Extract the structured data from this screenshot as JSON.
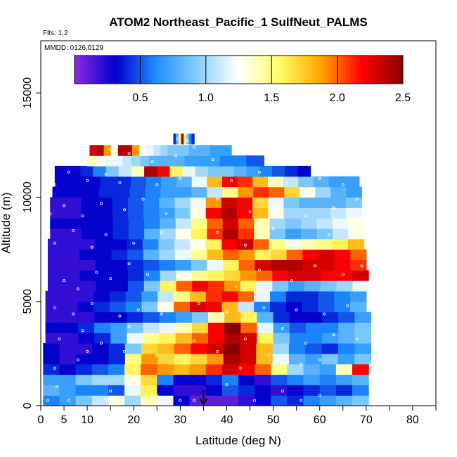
{
  "chart_data": {
    "type": "heatmap",
    "title": "ATOM2 Northeast_Pacific_1 SulfNeut_PALMS",
    "annotations": [
      "Flts: 1,2",
      "MMDD: 0126,0129"
    ],
    "xlabel": "Latitude (deg N)",
    "ylabel": "Altitude (m)",
    "xlim": [
      0,
      85
    ],
    "ylim": [
      0,
      17500
    ],
    "x_ticks": [
      0,
      5,
      10,
      15,
      20,
      25,
      30,
      35,
      40,
      45,
      50,
      55,
      60,
      65,
      70,
      75,
      80,
      85
    ],
    "x_tick_labels": [
      "0",
      "5",
      "10",
      "",
      "20",
      "",
      "30",
      "",
      "40",
      "",
      "50",
      "",
      "60",
      "",
      "70",
      "",
      "80",
      ""
    ],
    "y_ticks": [
      0,
      5000,
      10000,
      15000
    ],
    "y_tick_labels": [
      "0",
      "5000",
      "10000",
      "15000"
    ],
    "colorbar": {
      "min": 0,
      "max": 2.5,
      "ticks": [
        0.5,
        1.0,
        1.5,
        2.0,
        2.5
      ],
      "tick_labels": [
        "0.5",
        "1.0",
        "1.5",
        "2.0",
        "2.5"
      ],
      "colors": [
        "#8a2be2",
        "#0000cd",
        "#1e90ff",
        "#87cefa",
        "#ffffff",
        "#ffff66",
        "#ffa500",
        "#ff0000",
        "#8b0000"
      ]
    },
    "marker": {
      "x": 35,
      "y": 0,
      "shape": "down-arrow"
    },
    "rows": [
      {
        "y": 250,
        "x_start": 0.5,
        "x_end": 70.5,
        "v": [
          0.6,
          0.7,
          0.9,
          1.1,
          1.3,
          1.0,
          1.4,
          1.2,
          0.3,
          0.1,
          0.1,
          0.1,
          0.2,
          0.3,
          0.5,
          0.4,
          0.6,
          0.7,
          0.8,
          0.9
        ]
      },
      {
        "y": 750,
        "x_start": 0.5,
        "x_end": 70.5,
        "v": [
          0.8,
          0.7,
          0.6,
          0.6,
          0.5,
          1.2,
          1.6,
          0.3,
          0.2,
          0.2,
          0.3,
          0.5,
          0.4,
          0.3,
          0.2,
          0.3,
          0.4,
          0.5,
          0.4,
          0.6
        ]
      },
      {
        "y": 1250,
        "x_start": 0.5,
        "x_end": 70.5,
        "v": [
          0.7,
          0.7,
          0.9,
          1.0,
          1.0,
          1.3,
          1.7,
          0.6,
          0.3,
          0.3,
          0.4,
          0.6,
          0.3,
          0.2,
          0.5,
          0.6,
          0.7,
          0.6,
          0.7,
          0.8
        ]
      },
      {
        "y": 1750,
        "x_start": 0.5,
        "x_end": 70.5,
        "v": [
          0.4,
          0.3,
          0.4,
          0.5,
          0.6,
          1.6,
          2.0,
          1.9,
          1.8,
          1.9,
          2.1,
          2.3,
          2.2,
          2.0,
          1.5,
          1.0,
          0.8,
          0.7,
          1.4,
          2.2
        ]
      },
      {
        "y": 2250,
        "x_start": 0.5,
        "x_end": 71,
        "v": [
          0.3,
          0.2,
          0.3,
          0.3,
          0.4,
          1.5,
          1.9,
          1.7,
          1.6,
          1.7,
          1.9,
          2.4,
          2.3,
          1.8,
          1.2,
          0.8,
          0.7,
          0.9,
          0.7,
          0.9
        ]
      },
      {
        "y": 2750,
        "x_start": 0.5,
        "x_end": 71,
        "v": [
          0.3,
          0.2,
          0.2,
          0.3,
          0.4,
          0.9,
          1.7,
          1.8,
          2.0,
          2.2,
          2.3,
          2.5,
          2.3,
          1.8,
          1.0,
          0.6,
          0.5,
          0.4,
          0.6,
          0.7
        ]
      },
      {
        "y": 3250,
        "x_start": 1,
        "x_end": 71,
        "v": [
          0.2,
          0.2,
          0.3,
          0.4,
          0.7,
          1.2,
          1.5,
          1.6,
          1.8,
          2.0,
          2.2,
          2.4,
          2.3,
          1.6,
          0.9,
          0.6,
          0.6,
          0.7,
          0.8,
          0.9
        ]
      },
      {
        "y": 3750,
        "x_start": 1,
        "x_end": 71,
        "v": [
          0.3,
          0.3,
          0.4,
          0.6,
          0.7,
          0.9,
          1.1,
          1.2,
          1.4,
          1.7,
          2.2,
          2.5,
          2.0,
          1.2,
          0.7,
          0.5,
          0.6,
          0.6,
          0.8,
          0.9
        ]
      },
      {
        "y": 4250,
        "x_start": 1,
        "x_end": 71,
        "v": [
          0.2,
          0.2,
          0.2,
          0.3,
          0.3,
          0.4,
          0.5,
          0.6,
          0.7,
          0.9,
          1.4,
          1.8,
          1.6,
          0.8,
          0.4,
          0.3,
          0.3,
          0.4,
          0.5,
          0.7
        ]
      },
      {
        "y": 4750,
        "x_start": 1,
        "x_end": 70,
        "v": [
          0.2,
          0.2,
          0.3,
          0.4,
          0.5,
          0.6,
          0.9,
          1.3,
          2.0,
          2.3,
          2.2,
          1.8,
          1.1,
          0.6,
          0.4,
          0.3,
          0.4,
          0.5,
          0.6,
          0.8
        ]
      },
      {
        "y": 5250,
        "x_start": 1,
        "x_end": 70,
        "v": [
          0.2,
          0.2,
          0.2,
          0.3,
          0.4,
          0.5,
          0.7,
          1.1,
          1.5,
          1.8,
          2.1,
          2.2,
          2.0,
          1.2,
          0.6,
          0.4,
          0.4,
          0.5,
          0.6,
          0.7
        ]
      },
      {
        "y": 5750,
        "x_start": 1.5,
        "x_end": 70.5,
        "v": [
          0.2,
          0.2,
          0.2,
          0.3,
          0.3,
          0.5,
          0.9,
          1.6,
          2.0,
          2.2,
          2.1,
          1.9,
          1.6,
          1.2,
          0.9,
          0.7,
          0.8,
          0.9,
          1.0,
          1.2
        ]
      },
      {
        "y": 6250,
        "x_start": 1.5,
        "x_end": 70.5,
        "v": [
          0.2,
          0.2,
          0.3,
          0.3,
          0.3,
          0.4,
          0.6,
          1.0,
          1.3,
          1.5,
          1.6,
          1.7,
          1.9,
          2.0,
          2.2,
          2.3,
          2.3,
          2.2,
          2.2,
          2.3
        ]
      },
      {
        "y": 6750,
        "x_start": 1.5,
        "x_end": 70,
        "v": [
          0.2,
          0.2,
          0.2,
          0.3,
          0.3,
          0.4,
          0.5,
          0.6,
          0.7,
          0.9,
          1.2,
          1.6,
          2.0,
          2.3,
          2.4,
          2.4,
          2.3,
          2.3,
          2.2,
          2.1
        ]
      },
      {
        "y": 7250,
        "x_start": 1.5,
        "x_end": 70,
        "v": [
          0.2,
          0.2,
          0.3,
          0.3,
          0.4,
          0.5,
          0.8,
          1.0,
          1.2,
          1.5,
          1.8,
          2.0,
          1.9,
          1.6,
          1.7,
          2.0,
          2.2,
          2.3,
          2.2,
          2.0
        ]
      },
      {
        "y": 7750,
        "x_start": 1.5,
        "x_end": 69.5,
        "v": [
          0.2,
          0.2,
          0.2,
          0.3,
          0.3,
          0.4,
          0.6,
          0.9,
          1.1,
          1.3,
          1.6,
          2.2,
          2.3,
          2.0,
          1.5,
          1.3,
          1.4,
          1.5,
          1.6,
          1.8
        ]
      },
      {
        "y": 8250,
        "x_start": 2,
        "x_end": 69.5,
        "v": [
          0.2,
          0.2,
          0.3,
          0.3,
          0.4,
          0.5,
          0.8,
          1.0,
          1.3,
          1.6,
          2.1,
          2.4,
          2.1,
          1.4,
          0.9,
          0.7,
          0.8,
          0.9,
          1.1,
          1.3
        ]
      },
      {
        "y": 8750,
        "x_start": 2,
        "x_end": 69.5,
        "v": [
          0.3,
          0.3,
          0.3,
          0.3,
          0.4,
          0.5,
          0.6,
          0.8,
          1.1,
          1.5,
          2.0,
          2.3,
          2.0,
          1.4,
          1.0,
          0.9,
          1.0,
          1.1,
          1.2,
          1.3
        ]
      },
      {
        "y": 9250,
        "x_start": 2,
        "x_end": 69,
        "v": [
          0.2,
          0.2,
          0.3,
          0.3,
          0.4,
          0.5,
          0.6,
          0.7,
          0.9,
          1.3,
          2.2,
          2.4,
          2.2,
          1.8,
          1.3,
          1.0,
          1.0,
          1.0,
          1.1,
          1.2
        ]
      },
      {
        "y": 9750,
        "x_start": 2,
        "x_end": 69,
        "v": [
          0.2,
          0.2,
          0.3,
          0.3,
          0.4,
          0.5,
          0.6,
          0.8,
          1.0,
          1.2,
          1.9,
          2.3,
          2.2,
          1.7,
          1.2,
          0.9,
          0.8,
          0.8,
          0.8,
          0.9
        ]
      },
      {
        "y": 10250,
        "x_start": 2.5,
        "x_end": 69,
        "v": [
          0.3,
          0.3,
          0.3,
          0.4,
          0.4,
          0.5,
          0.6,
          0.7,
          0.7,
          0.8,
          1.1,
          1.5,
          1.9,
          2.1,
          2.0,
          1.7,
          1.3,
          1.0,
          0.8,
          0.7
        ]
      },
      {
        "y": 10750,
        "x_start": 3,
        "x_end": 68.5,
        "v": [
          0.3,
          0.3,
          0.3,
          0.4,
          0.4,
          0.5,
          0.6,
          0.7,
          0.8,
          1.2,
          1.8,
          2.2,
          2.1,
          1.8,
          1.4,
          1.1,
          0.9,
          0.8,
          0.7,
          0.7
        ]
      },
      {
        "y": 11250,
        "x_start": 3,
        "x_end": 58,
        "v": [
          0.3,
          0.3,
          0.4,
          0.6,
          0.9,
          1.1,
          1.4,
          2.4,
          2.2,
          1.6,
          1.2,
          1.0,
          0.9,
          0.9,
          0.8,
          0.7,
          0.6,
          0.5,
          0.4,
          0.3
        ]
      },
      {
        "y": 11750,
        "x_start": 10,
        "x_end": 48,
        "v": [
          1.4,
          1.3,
          1.2,
          1.2,
          1.1,
          1.0,
          0.9,
          0.8,
          0.8,
          0.8,
          0.8,
          0.7,
          0.7,
          0.7,
          0.7,
          0.6,
          0.6,
          0.6,
          0.5,
          0.5
        ]
      },
      {
        "y": 12250,
        "x_start": 10.5,
        "x_end": 41,
        "v": [
          2.3,
          2.4,
          1.9,
          1.3,
          2.4,
          2.4,
          1.9,
          1.3,
          1.2,
          1.1,
          1.0,
          0.9,
          0.9,
          0.9,
          0.8,
          0.8,
          0.8,
          0.7,
          0.7,
          0.7
        ]
      },
      {
        "y": 12800,
        "x_start": 28.5,
        "x_end": 33,
        "v": [
          0.4,
          0.8,
          1.6,
          2.4,
          1.5,
          0.9,
          0.6,
          0.4
        ]
      }
    ],
    "point_markers": [
      [
        1.5,
        250
      ],
      [
        3.5,
        900
      ],
      [
        6,
        250
      ],
      [
        14,
        300
      ],
      [
        15,
        700
      ],
      [
        22,
        250
      ],
      [
        25,
        500
      ],
      [
        30,
        250
      ],
      [
        33,
        250
      ],
      [
        40,
        1000
      ],
      [
        46,
        250
      ],
      [
        52,
        700
      ],
      [
        56,
        250
      ],
      [
        60,
        500
      ],
      [
        3,
        1800
      ],
      [
        8,
        2200
      ],
      [
        10,
        2600
      ],
      [
        18,
        2600
      ],
      [
        20,
        1800
      ],
      [
        25,
        2400
      ],
      [
        31,
        2200
      ],
      [
        38,
        2600
      ],
      [
        43,
        1800
      ],
      [
        49,
        2400
      ],
      [
        56,
        2000
      ],
      [
        60,
        2200
      ],
      [
        66,
        1800
      ],
      [
        4,
        3200
      ],
      [
        9,
        3600
      ],
      [
        13,
        3000
      ],
      [
        19,
        3800
      ],
      [
        24,
        3400
      ],
      [
        30,
        3600
      ],
      [
        33,
        3100
      ],
      [
        44,
        3200
      ],
      [
        52,
        3700
      ],
      [
        57,
        3000
      ],
      [
        63,
        3400
      ],
      [
        68,
        3200
      ],
      [
        3,
        4700
      ],
      [
        7,
        4400
      ],
      [
        11,
        4900
      ],
      [
        17,
        4300
      ],
      [
        21,
        4600
      ],
      [
        26,
        4400
      ],
      [
        34,
        4900
      ],
      [
        40,
        4500
      ],
      [
        48,
        4700
      ],
      [
        55,
        4600
      ],
      [
        61,
        4400
      ],
      [
        66,
        4800
      ],
      [
        5,
        6000
      ],
      [
        8,
        5600
      ],
      [
        12,
        6400
      ],
      [
        15,
        6100
      ],
      [
        19,
        6800
      ],
      [
        23,
        6300
      ],
      [
        28,
        5800
      ],
      [
        35,
        6200
      ],
      [
        42,
        5700
      ],
      [
        47,
        6500
      ],
      [
        54,
        6000
      ],
      [
        59,
        6700
      ],
      [
        65,
        6300
      ],
      [
        69,
        6700
      ],
      [
        3,
        7800
      ],
      [
        7,
        8400
      ],
      [
        11,
        7600
      ],
      [
        14,
        8200
      ],
      [
        20,
        7800
      ],
      [
        26,
        8300
      ],
      [
        32,
        7900
      ],
      [
        38,
        8300
      ],
      [
        44,
        7700
      ],
      [
        50,
        8500
      ],
      [
        56,
        7900
      ],
      [
        62,
        8200
      ],
      [
        67,
        8100
      ],
      [
        2,
        9200
      ],
      [
        5,
        9600
      ],
      [
        9,
        9100
      ],
      [
        13,
        9700
      ],
      [
        18,
        9400
      ],
      [
        22,
        9900
      ],
      [
        27,
        9200
      ],
      [
        33,
        9600
      ],
      [
        38,
        9900
      ],
      [
        45,
        9300
      ],
      [
        51,
        9700
      ],
      [
        57,
        9100
      ],
      [
        63,
        9500
      ],
      [
        68,
        9900
      ],
      [
        3,
        10600
      ],
      [
        6,
        11200
      ],
      [
        10,
        10800
      ],
      [
        14,
        11100
      ],
      [
        17,
        10700
      ],
      [
        21,
        11300
      ],
      [
        25,
        10600
      ],
      [
        30,
        10900
      ],
      [
        35,
        10700
      ],
      [
        41,
        10800
      ],
      [
        47,
        11200
      ],
      [
        53,
        10700
      ],
      [
        60,
        10900
      ],
      [
        65,
        10600
      ],
      [
        11,
        11900
      ],
      [
        15,
        12300
      ],
      [
        19,
        12100
      ],
      [
        24,
        11700
      ],
      [
        29,
        12000
      ],
      [
        33,
        12400
      ],
      [
        37,
        11800
      ],
      [
        42,
        12100
      ],
      [
        29.5,
        12800
      ],
      [
        31.5,
        12700
      ]
    ]
  }
}
